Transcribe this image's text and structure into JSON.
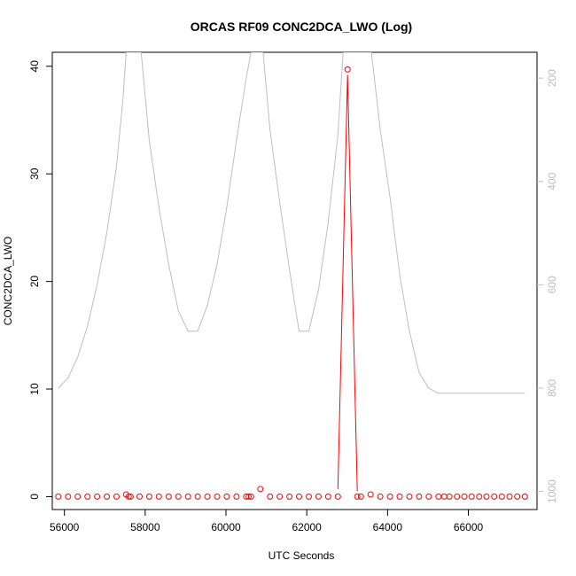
{
  "chart_data": {
    "type": "line",
    "title": "ORCAS RF09 CONC2DCA_LWO (Log)",
    "xlabel": "UTC Seconds",
    "ylabel": "CONC2DCA_LWO",
    "xlim": [
      55700,
      67700
    ],
    "ylim": [
      -1.2,
      41.3
    ],
    "x_ticks": [
      56000,
      58000,
      60000,
      62000,
      64000,
      66000
    ],
    "y_ticks": [
      0,
      10,
      20,
      30,
      40
    ],
    "y2_ticks": [
      200,
      400,
      600,
      800,
      1000
    ],
    "y2_range_top_bottom": [
      150,
      1035
    ],
    "grid": false,
    "legend": "none",
    "colors": {
      "conc": "#ff0000",
      "pressure": "#bebebe",
      "axis": "#000000",
      "axis_right": "#bebebe"
    },
    "series": [
      {
        "points": [
          [
            55850,
            0
          ],
          [
            56090,
            0
          ],
          [
            56330,
            0
          ],
          [
            56570,
            0
          ],
          [
            56810,
            0
          ],
          [
            57050,
            0
          ],
          [
            57290,
            0
          ],
          [
            57530,
            0.2
          ],
          [
            57590,
            0
          ],
          [
            57640,
            0
          ],
          [
            57860,
            0
          ],
          [
            58100,
            0
          ],
          [
            58340,
            0
          ],
          [
            58580,
            0
          ],
          [
            58820,
            0
          ],
          [
            59060,
            0
          ],
          [
            59300,
            0
          ],
          [
            59540,
            0
          ],
          [
            59780,
            0
          ],
          [
            60020,
            0
          ],
          [
            60260,
            0
          ],
          [
            60500,
            0
          ],
          [
            60560,
            0
          ],
          [
            60620,
            0
          ],
          [
            60850,
            0.7
          ],
          [
            61090,
            0
          ],
          [
            61330,
            0
          ],
          [
            61570,
            0
          ],
          [
            61810,
            0
          ],
          [
            62050,
            0
          ],
          [
            62290,
            0
          ],
          [
            62530,
            0
          ],
          [
            62770,
            0
          ],
          [
            63010,
            39.7
          ],
          [
            63250,
            0
          ],
          [
            63340,
            0
          ],
          [
            63580,
            0.2
          ],
          [
            63820,
            0
          ],
          [
            64060,
            0
          ],
          [
            64300,
            0
          ],
          [
            64540,
            0
          ],
          [
            64780,
            0
          ],
          [
            65020,
            0
          ],
          [
            65260,
            0
          ],
          [
            65400,
            0
          ],
          [
            65530,
            0
          ],
          [
            65720,
            0
          ],
          [
            65900,
            0
          ],
          [
            66080,
            0
          ],
          [
            66270,
            0
          ],
          [
            66450,
            0
          ],
          [
            66640,
            0
          ],
          [
            66830,
            0
          ],
          [
            67020,
            0
          ],
          [
            67210,
            0
          ],
          [
            67400,
            0
          ]
        ],
        "line_segment": [
          [
            62770,
            0.7
          ],
          [
            63010,
            39.2
          ],
          [
            63250,
            0.5
          ]
        ]
      },
      {
        "axis": "right",
        "points": [
          [
            55850,
            800
          ],
          [
            56090,
            780
          ],
          [
            56330,
            740
          ],
          [
            56570,
            680
          ],
          [
            56810,
            600
          ],
          [
            57050,
            500
          ],
          [
            57290,
            370
          ],
          [
            57450,
            240
          ],
          [
            57530,
            150
          ],
          [
            57900,
            150
          ],
          [
            58100,
            320
          ],
          [
            58340,
            450
          ],
          [
            58580,
            560
          ],
          [
            58820,
            650
          ],
          [
            59060,
            690
          ],
          [
            59300,
            690
          ],
          [
            59540,
            640
          ],
          [
            59780,
            560
          ],
          [
            60020,
            450
          ],
          [
            60260,
            320
          ],
          [
            60500,
            200
          ],
          [
            60620,
            150
          ],
          [
            60920,
            150
          ],
          [
            61090,
            300
          ],
          [
            61330,
            440
          ],
          [
            61570,
            570
          ],
          [
            61810,
            690
          ],
          [
            62050,
            690
          ],
          [
            62290,
            610
          ],
          [
            62530,
            480
          ],
          [
            62770,
            310
          ],
          [
            62900,
            150
          ],
          [
            63600,
            150
          ],
          [
            63820,
            300
          ],
          [
            64060,
            430
          ],
          [
            64300,
            580
          ],
          [
            64540,
            690
          ],
          [
            64780,
            770
          ],
          [
            65020,
            800
          ],
          [
            65260,
            810
          ],
          [
            65500,
            810
          ],
          [
            67400,
            810
          ]
        ]
      }
    ]
  }
}
